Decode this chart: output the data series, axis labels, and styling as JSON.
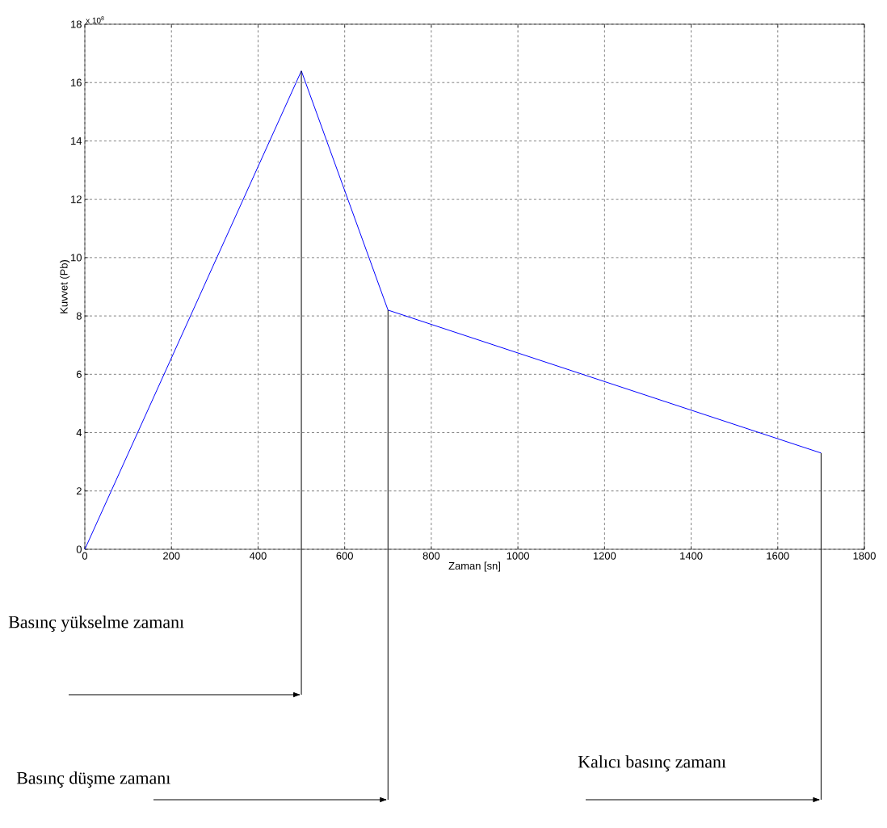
{
  "chart_data": {
    "type": "line",
    "xlabel": "Zaman [sn]",
    "ylabel": "Kuvvet (Pb)",
    "x": [
      0,
      500,
      700,
      1700
    ],
    "series": [
      {
        "color": "#0000ff",
        "values": [
          0,
          16.4,
          8.2,
          3.3
        ]
      }
    ],
    "xlim": [
      0,
      1800
    ],
    "ylim": [
      0,
      18
    ],
    "xticks": [
      0,
      200,
      400,
      600,
      800,
      1000,
      1200,
      1400,
      1600,
      1800
    ],
    "yticks": [
      0,
      2,
      4,
      6,
      8,
      10,
      12,
      14,
      16,
      18
    ],
    "grid": true,
    "line_style": "solid",
    "annotations": [
      "x 10$^{8}$",
      "Basınç yükselme zamanı",
      "Basınç düşme zamanı",
      "Kalıcı basınç zamanı"
    ],
    "ref_lines": [
      {
        "axis": "x",
        "value": 500,
        "color": "#000000"
      },
      {
        "axis": "x",
        "value": 700,
        "color": "#000000"
      },
      {
        "axis": "x",
        "value": 1700,
        "color": "#000000"
      }
    ]
  }
}
